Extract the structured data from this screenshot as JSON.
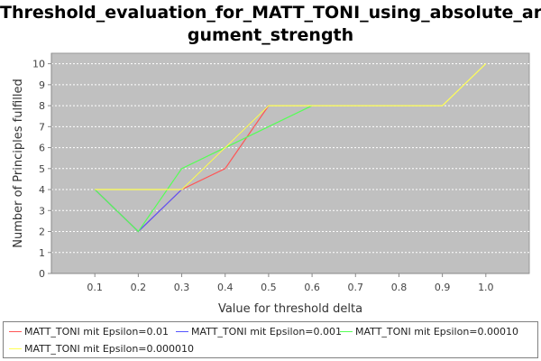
{
  "chart_data": {
    "type": "line",
    "title_lines": [
      "Threshold_evaluation_for_MATT_TONI_using_absolute_ar",
      "gument_strength"
    ],
    "xlabel": "Value for threshold delta",
    "ylabel": "Number of Principles fulfilled",
    "x_ticks": [
      "0.1",
      "0.2",
      "0.3",
      "0.4",
      "0.5",
      "0.6",
      "0.7",
      "0.8",
      "0.9",
      "1.0"
    ],
    "y_ticks": [
      "0",
      "1",
      "2",
      "3",
      "4",
      "5",
      "6",
      "7",
      "8",
      "9",
      "10"
    ],
    "xlim": [
      0.0,
      1.1
    ],
    "ylim": [
      0,
      10.5
    ],
    "grid": true,
    "legend_position": "bottom",
    "series": [
      {
        "name": "MATT_TONI mit Epsilon=0.01",
        "color": "#ff5555",
        "points": [
          [
            0.1,
            4
          ],
          [
            0.2,
            2
          ],
          [
            0.3,
            4
          ],
          [
            0.4,
            5
          ],
          [
            0.5,
            8
          ]
        ]
      },
      {
        "name": "MATT_TONI mit Epsilon=0.001",
        "color": "#5555ff",
        "points": [
          [
            0.1,
            4
          ],
          [
            0.2,
            2
          ],
          [
            0.3,
            4
          ],
          [
            0.4,
            6
          ],
          [
            0.5,
            8
          ]
        ]
      },
      {
        "name": "MATT_TONI mit Epsilon=0.00010",
        "color": "#55ff55",
        "points": [
          [
            0.1,
            4
          ],
          [
            0.2,
            2
          ],
          [
            0.3,
            5
          ],
          [
            0.4,
            6
          ],
          [
            0.5,
            7
          ],
          [
            0.6,
            8
          ]
        ]
      },
      {
        "name": "MATT_TONI mit Epsilon=0.000010",
        "color": "#ffff55",
        "points": [
          [
            0.1,
            4
          ],
          [
            0.2,
            4
          ],
          [
            0.3,
            4
          ],
          [
            0.4,
            6
          ],
          [
            0.5,
            8
          ],
          [
            0.6,
            8
          ],
          [
            0.7,
            8
          ],
          [
            0.8,
            8
          ],
          [
            0.9,
            8
          ],
          [
            1.0,
            10
          ]
        ]
      }
    ]
  }
}
